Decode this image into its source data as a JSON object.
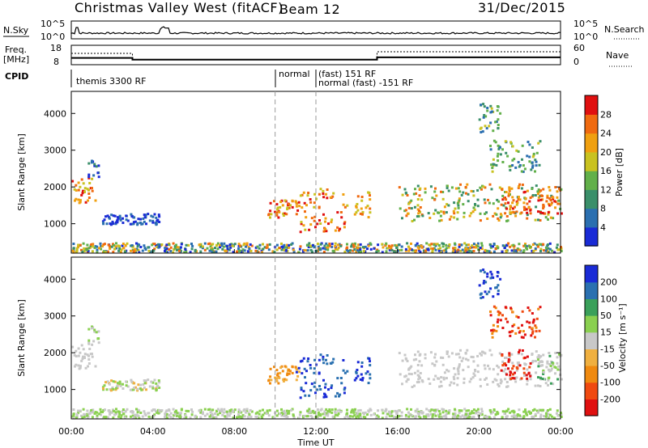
{
  "header": {
    "title": "Christmas Valley West (fitACF)",
    "beam": "Beam 12",
    "date": "31/Dec/2015"
  },
  "top_panels": {
    "nsky_label": "N.Sky",
    "nsearch_label": "N.Search",
    "nsky_ticks": [
      "10^5",
      "10^0"
    ],
    "nsearch_ticks": [
      "10^5",
      "10^0"
    ],
    "freq_label_line1": "Freq.",
    "freq_label_line2": "[MHz]",
    "freq_ticks": [
      "18",
      "8"
    ],
    "nave_label": "Nave",
    "nave_ticks": [
      "60",
      "0"
    ],
    "cpid_label": "CPID",
    "cpid_segments": [
      {
        "start_hour": 0,
        "end_hour": 10,
        "label": "themis 3300 RF"
      },
      {
        "start_hour": 10,
        "end_hour": 12,
        "label": "normal"
      },
      {
        "start_hour": 12,
        "end_hour": 24,
        "label": "(fast) 151 RF",
        "label2": "normal (fast) -151 RF"
      }
    ],
    "freq_profile": [
      {
        "hour": 0,
        "mhz": 11.5
      },
      {
        "hour": 3,
        "mhz": 11.5
      },
      {
        "hour": 3,
        "mhz": 10.6
      },
      {
        "hour": 15,
        "mhz": 10.6
      },
      {
        "hour": 15,
        "mhz": 11.8
      },
      {
        "hour": 24,
        "mhz": 11.8
      }
    ]
  },
  "chart_data": [
    {
      "type": "heatmap",
      "panel": "power",
      "xlabel": "",
      "ylabel": "Slant Range [km]",
      "xlim": [
        0,
        24
      ],
      "ylim": [
        200,
        4600
      ],
      "y_ticks": [
        1000,
        2000,
        3000,
        4000
      ],
      "mode_change_hours": [
        10,
        12
      ],
      "colorbar": {
        "label": "Power [dB]",
        "range": [
          0,
          30
        ],
        "ticks": [
          "4",
          "8",
          "12",
          "16",
          "20",
          "24",
          "28"
        ],
        "colors": [
          "#1a2bd6",
          "#2b6fb0",
          "#3a8f6a",
          "#62b04a",
          "#c9c220",
          "#f0a010",
          "#f06a10",
          "#e01010"
        ]
      }
    },
    {
      "type": "heatmap",
      "panel": "velocity",
      "xlabel": "Time UT",
      "ylabel": "Slant Range [km]",
      "xlim": [
        0,
        24
      ],
      "ylim": [
        200,
        4600
      ],
      "y_ticks": [
        1000,
        2000,
        3000,
        4000
      ],
      "x_ticks": [
        "00:00",
        "04:00",
        "08:00",
        "12:00",
        "16:00",
        "20:00",
        "00:00"
      ],
      "mode_change_hours": [
        10,
        12
      ],
      "colorbar": {
        "label": "Velocity [m s⁻¹]",
        "range": [
          -250,
          250
        ],
        "ticks": [
          "-200",
          "-100",
          "-50",
          "-15",
          "15",
          "50",
          "100",
          "200"
        ],
        "colors": [
          "#e01010",
          "#f04a10",
          "#f08a10",
          "#f0b040",
          "#c8c8c8",
          "#8ad050",
          "#3aa05a",
          "#2a70b0",
          "#1a2bd6"
        ]
      }
    }
  ]
}
